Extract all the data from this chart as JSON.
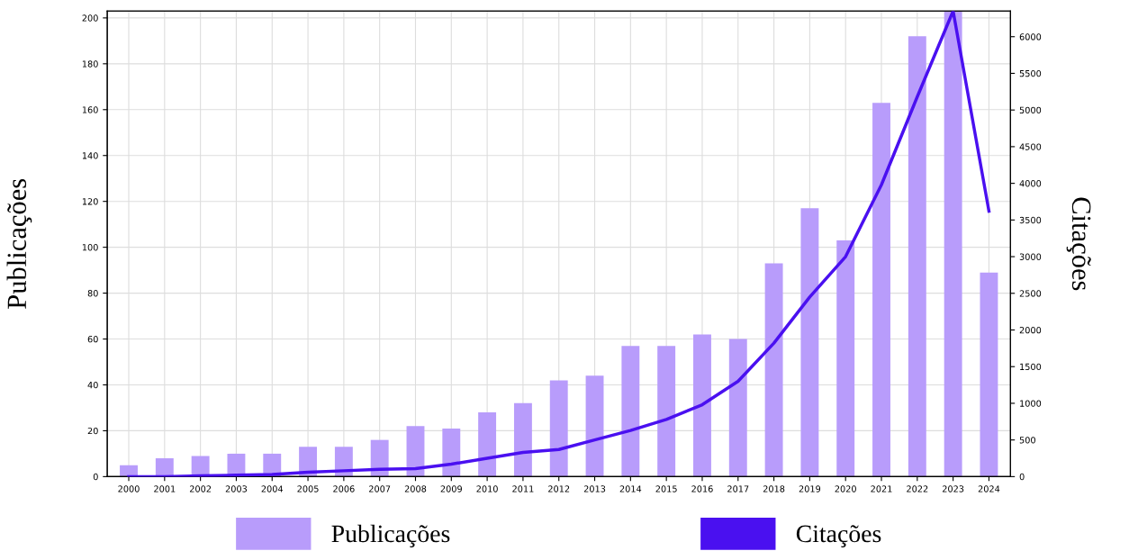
{
  "chart_data": {
    "type": "bar",
    "ylabel": "Publicações",
    "y2label": "Citações",
    "categories": [
      "2000",
      "2001",
      "2002",
      "2003",
      "2004",
      "2005",
      "2006",
      "2007",
      "2008",
      "2009",
      "2010",
      "2011",
      "2012",
      "2013",
      "2014",
      "2015",
      "2016",
      "2017",
      "2018",
      "2019",
      "2020",
      "2021",
      "2022",
      "2023",
      "2024"
    ],
    "series": [
      {
        "name": "Publicações",
        "color": "#b89cfb",
        "values": [
          5,
          8,
          9,
          10,
          10,
          13,
          13,
          16,
          22,
          21,
          28,
          32,
          42,
          44,
          57,
          57,
          62,
          60,
          93,
          117,
          103,
          163,
          192,
          203,
          89
        ]
      },
      {
        "name": "Citações",
        "type": "line",
        "axis": "y2",
        "color": "#4a10f0",
        "values": [
          0,
          0,
          10,
          20,
          30,
          60,
          80,
          100,
          110,
          170,
          250,
          330,
          370,
          500,
          630,
          780,
          980,
          1300,
          1820,
          2450,
          3000,
          3980,
          5180,
          6350,
          3620
        ]
      }
    ],
    "ylim": [
      0,
      203
    ],
    "yticks": [
      0,
      20,
      40,
      60,
      80,
      100,
      120,
      140,
      160,
      180,
      200
    ],
    "y2lim": [
      0,
      6350
    ],
    "y2ticks": [
      0,
      500,
      1000,
      1500,
      2000,
      2500,
      3000,
      3500,
      4000,
      4500,
      5000,
      5500,
      6000
    ],
    "grid": true,
    "legend": "bottom",
    "marker": "none",
    "line_style": "solid"
  }
}
